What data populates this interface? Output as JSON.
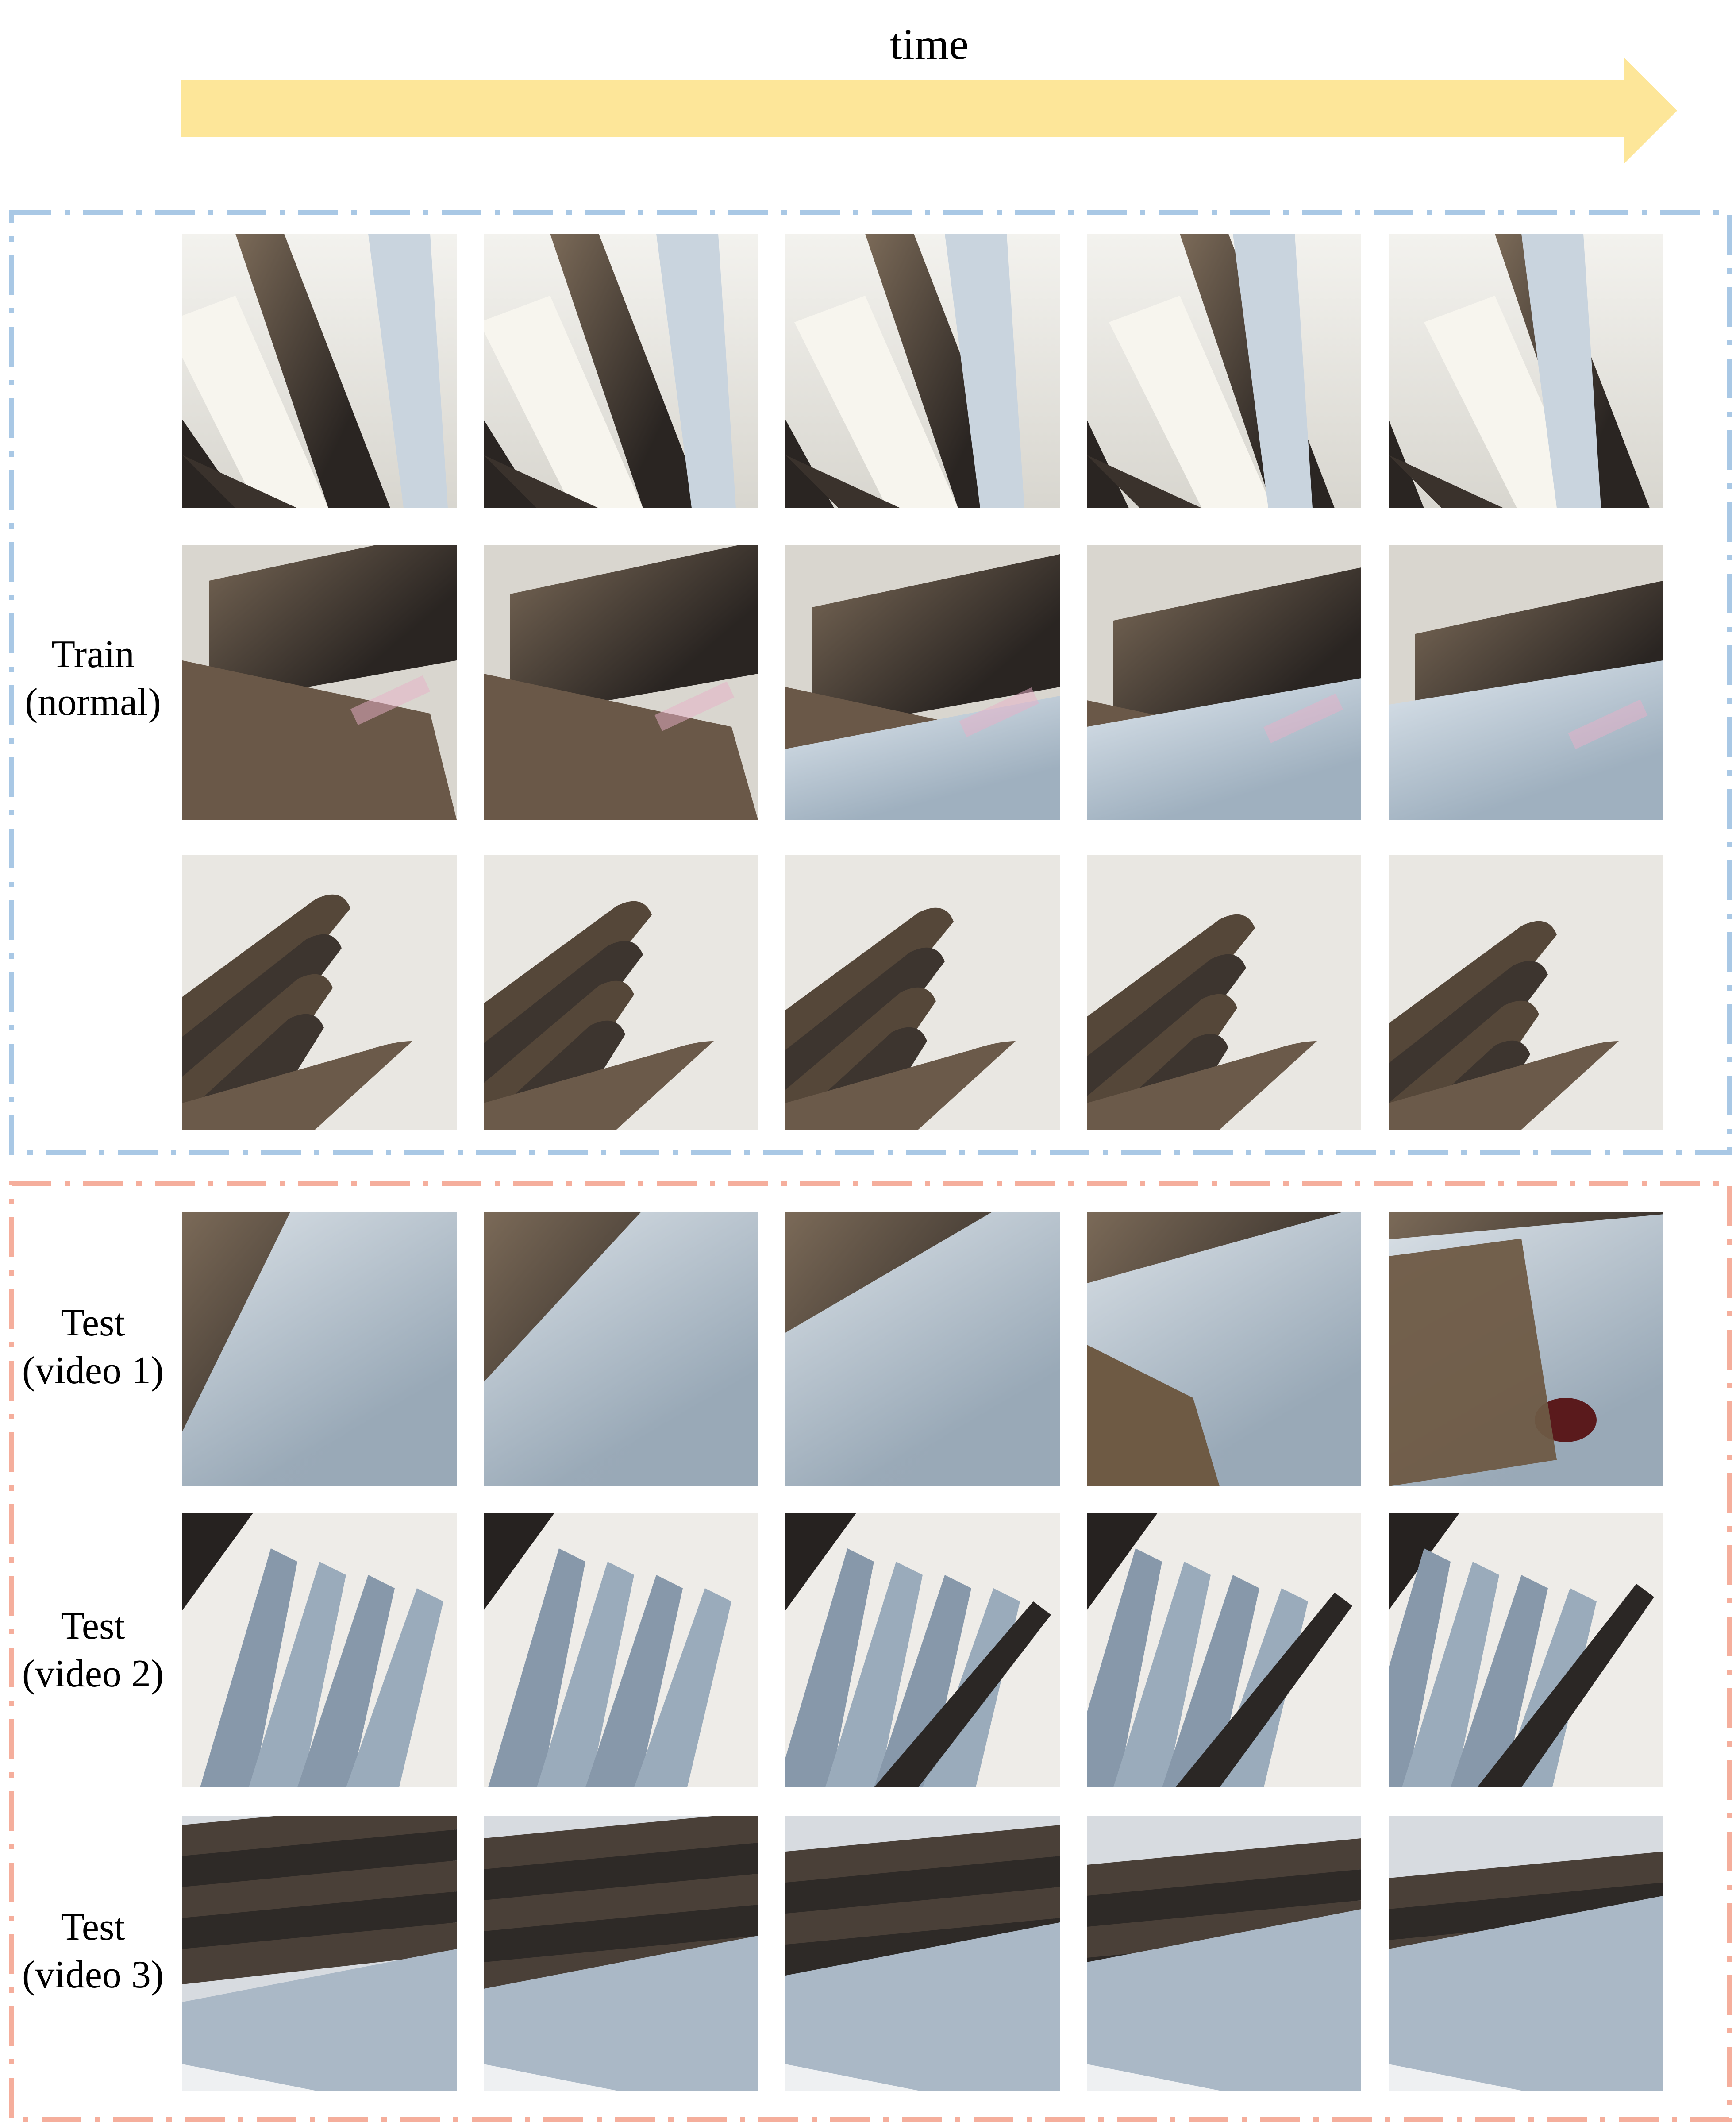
{
  "time_axis": {
    "label": "time",
    "arrow_color": "#FDE699"
  },
  "groups": [
    {
      "id": "train",
      "border_color": "#A9C8E5",
      "rows": [
        {
          "label_line1": "Train",
          "label_line2": "(normal)",
          "frames": 5,
          "scene": "thin-blades"
        },
        {
          "scene": "wide-blades",
          "frames": 5
        },
        {
          "scene": "curled-tips",
          "frames": 5
        }
      ]
    },
    {
      "id": "test",
      "border_color": "#F5AE9C",
      "rows": [
        {
          "label_line1": "Test",
          "label_line2": "(video 1)",
          "frames": 5,
          "scene": "wide-grey"
        },
        {
          "label_line1": "Test",
          "label_line2": "(video 2)",
          "frames": 5,
          "scene": "grey-spikes"
        },
        {
          "label_line1": "Test",
          "label_line2": "(video 3)",
          "frames": 5,
          "scene": "dark-grey-stack"
        }
      ]
    }
  ],
  "palette": {
    "bronze": "#5a4a3c",
    "bronze_light": "#7b6a58",
    "grey_blade": "#b9c7d3",
    "cream": "#ecebe6",
    "shadow": "#2a2522"
  }
}
